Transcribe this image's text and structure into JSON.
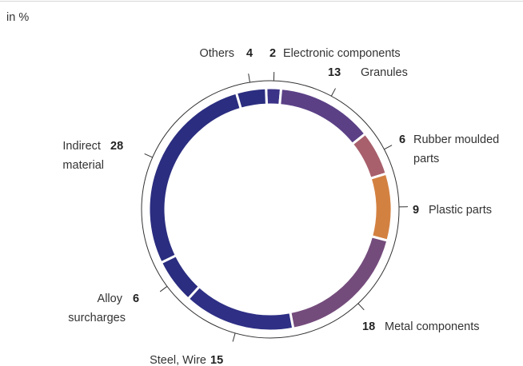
{
  "chart_data": {
    "type": "donut",
    "unit_label": "in %",
    "categories": [
      "Electronic components",
      "Granules",
      "Rubber moulded parts",
      "Plastic parts",
      "Metal components",
      "Steel, Wire",
      "Alloy surcharges",
      "Indirect material",
      "Others"
    ],
    "values": [
      2,
      13,
      6,
      9,
      18,
      15,
      6,
      28,
      4
    ],
    "colors": [
      "#3b3388",
      "#5b4086",
      "#a8606c",
      "#d38141",
      "#744c7c",
      "#2e2f85",
      "#2b2d80",
      "#2b2d80",
      "#2b2d80"
    ]
  }
}
